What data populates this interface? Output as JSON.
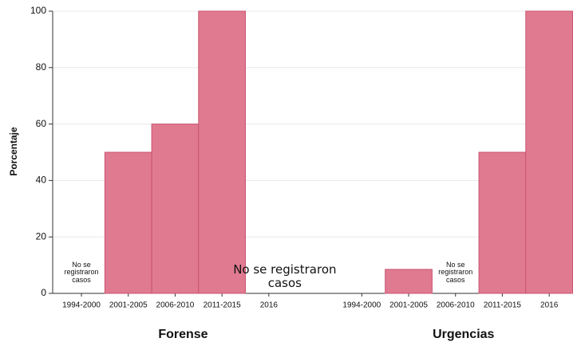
{
  "chart_data": {
    "type": "bar",
    "ylabel": "Porcentaje",
    "color": "#e07a91",
    "ylim": [
      0,
      100
    ],
    "yticks": [
      0,
      20,
      40,
      60,
      80,
      100
    ],
    "grid": true,
    "groups": [
      {
        "name": "Forense",
        "categories": [
          "1994-2000",
          "2001-2005",
          "2006-2010",
          "2011-2015",
          "2016"
        ],
        "values": [
          null,
          50,
          60,
          100,
          null
        ],
        "annotations": [
          {
            "category": "1994-2000",
            "text": "No se registraron casos"
          },
          {
            "category": "2016",
            "text": "No se  registraron casos"
          }
        ]
      },
      {
        "name": "Urgencias",
        "categories": [
          "1994-2000",
          "2001-2005",
          "2006-2010",
          "2011-2015",
          "2016"
        ],
        "values": [
          null,
          8.5,
          null,
          50,
          100
        ],
        "annotations": [
          {
            "category": "2006-2010",
            "text": "No se registraron casos"
          }
        ]
      }
    ]
  }
}
